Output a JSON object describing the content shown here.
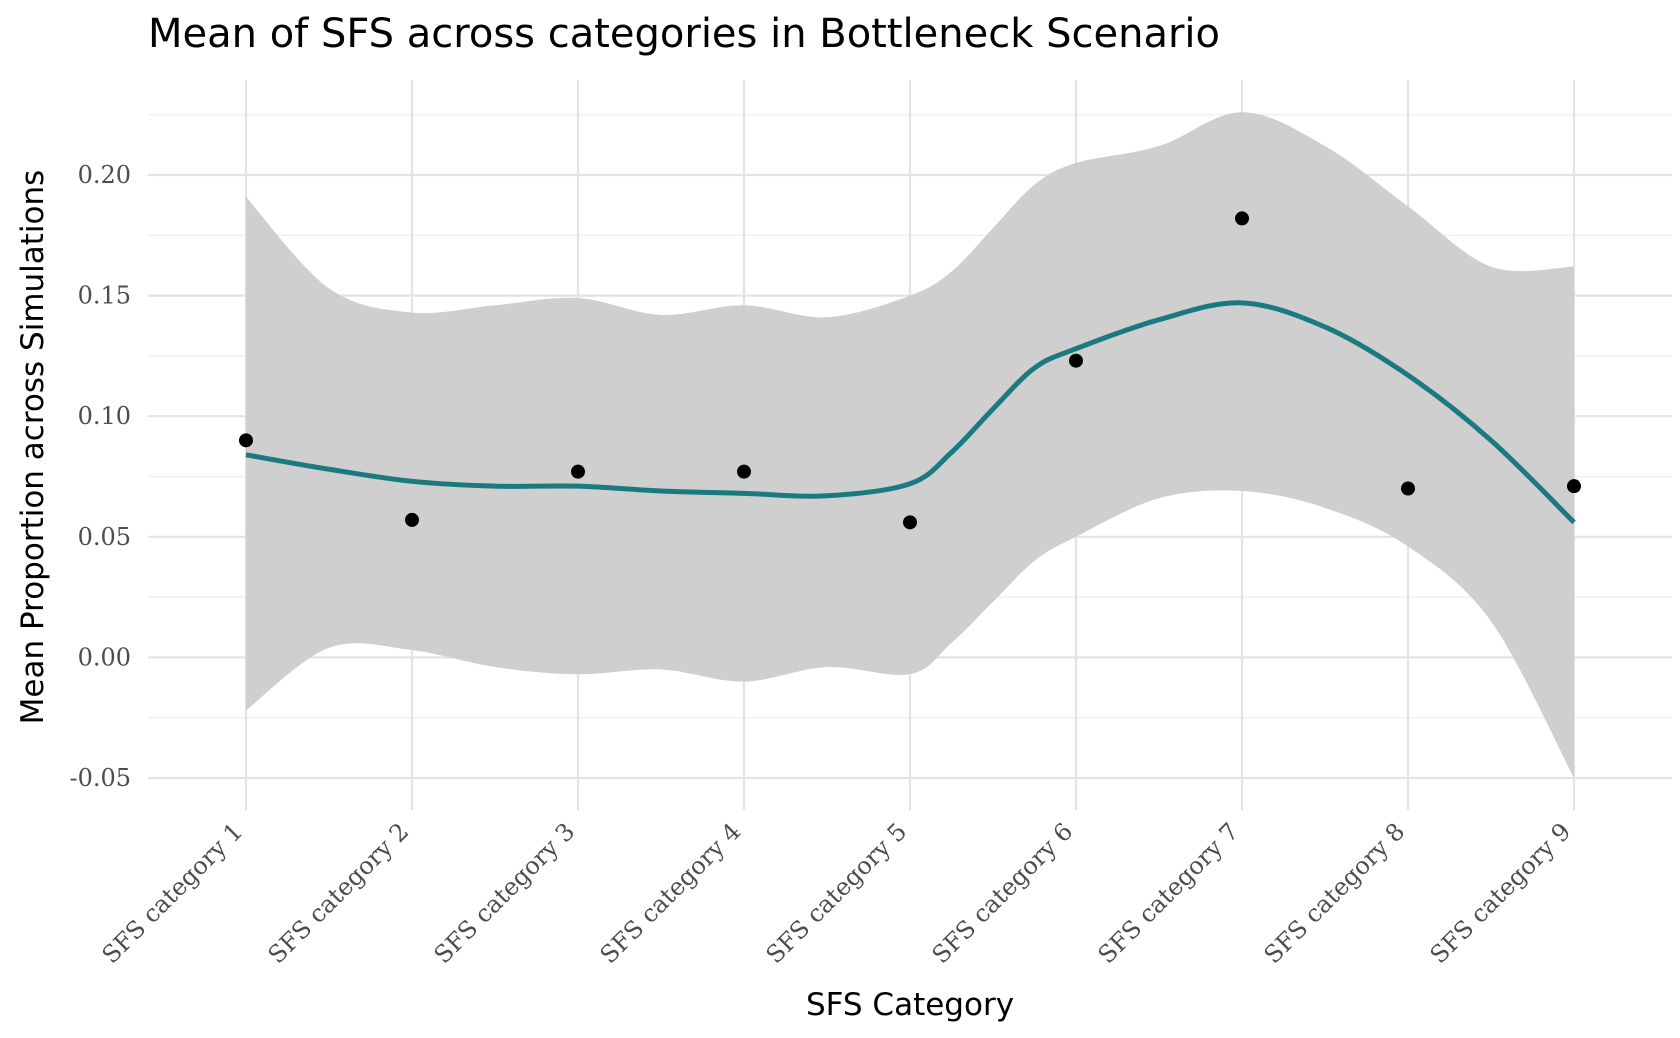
{
  "chart_data": {
    "type": "scatter",
    "title": "Mean of SFS across categories in Bottleneck Scenario",
    "xlabel": "SFS Category",
    "ylabel": "Mean Proportion across Simulations",
    "categories": [
      "SFS category 1",
      "SFS category 2",
      "SFS category 3",
      "SFS category 4",
      "SFS category 5",
      "SFS category 6",
      "SFS category 7",
      "SFS category 8",
      "SFS category 9"
    ],
    "y_ticks": [
      "-0.05",
      "0.00",
      "0.05",
      "0.10",
      "0.15",
      "0.20"
    ],
    "ylim": [
      -0.065,
      0.228
    ],
    "grid": true,
    "legend": "none",
    "points": {
      "values": [
        0.09,
        0.057,
        0.077,
        0.077,
        0.056,
        0.123,
        0.182,
        0.07,
        0.071
      ],
      "color": "#000000"
    },
    "smooth": {
      "x": [
        1,
        1.5,
        2,
        2.5,
        3,
        3.5,
        4,
        4.5,
        5,
        5.25,
        5.5,
        5.75,
        6,
        6.5,
        7,
        7.5,
        8,
        8.5,
        9
      ],
      "y": [
        0.084,
        0.078,
        0.073,
        0.071,
        0.071,
        0.069,
        0.068,
        0.067,
        0.072,
        0.085,
        0.103,
        0.12,
        0.128,
        0.14,
        0.147,
        0.137,
        0.117,
        0.09,
        0.056
      ],
      "color": "#1a7a80"
    },
    "confidence_band": {
      "upper": [
        0.191,
        0.153,
        0.143,
        0.146,
        0.149,
        0.142,
        0.146,
        0.141,
        0.15,
        0.16,
        0.178,
        0.196,
        0.205,
        0.212,
        0.226,
        0.212,
        0.187,
        0.162,
        0.162
      ],
      "lower": [
        -0.022,
        0.004,
        0.003,
        -0.004,
        -0.007,
        -0.005,
        -0.01,
        -0.004,
        -0.007,
        0.006,
        0.023,
        0.04,
        0.05,
        0.066,
        0.069,
        0.062,
        0.046,
        0.015,
        -0.05
      ],
      "color": "#cccccc"
    }
  }
}
